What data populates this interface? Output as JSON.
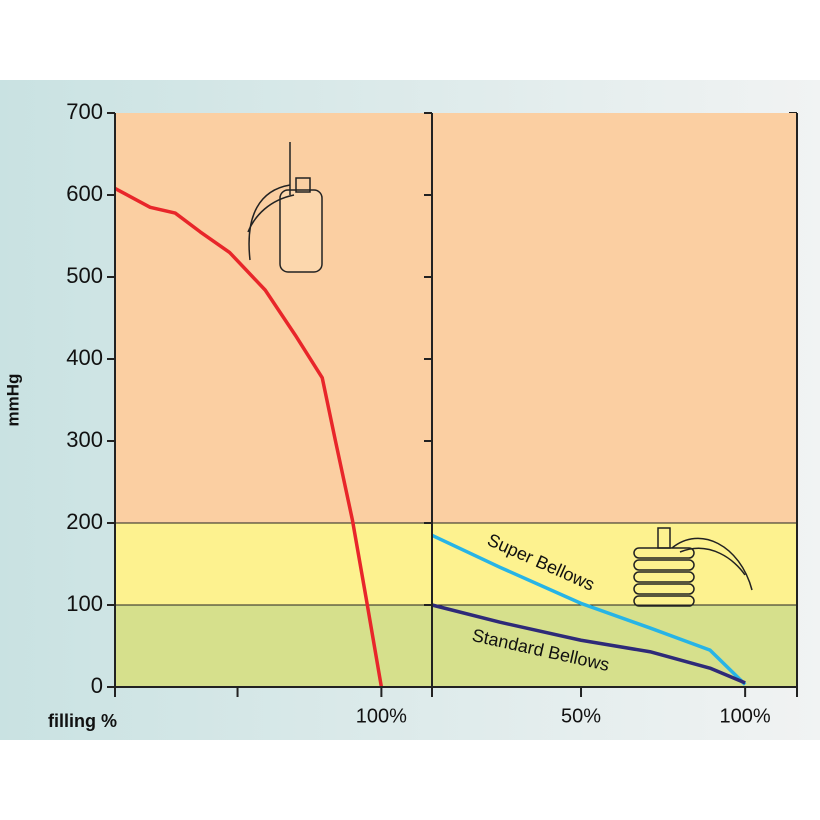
{
  "chart_data": [
    {
      "type": "line",
      "y_label": "mmHg",
      "x_label": "filling %",
      "xlim": [
        0,
        119
      ],
      "xticks": [
        {
          "value": 0,
          "label": null
        },
        {
          "value": 46,
          "label": null
        },
        {
          "value": 100,
          "label": "100%"
        }
      ],
      "ylim": [
        0,
        700
      ],
      "yticks": [
        0,
        100,
        200,
        300,
        400,
        500,
        600,
        700
      ],
      "bands": [
        {
          "from": 0,
          "to": 100,
          "color": "#d6e08c"
        },
        {
          "from": 100,
          "to": 200,
          "color": "#fdf28f"
        },
        {
          "from": 200,
          "to": 700,
          "color": "#fbcfa2"
        }
      ],
      "series": [
        {
          "color": "#e8262a",
          "x": [
            0,
            13.2,
            22.6,
            32,
            43,
            56.4,
            67.7,
            77.8,
            82.7,
            89.1,
            94.4,
            100
          ],
          "values": [
            608,
            585,
            578,
            555,
            530,
            484,
            429,
            377,
            301,
            204,
            106,
            0
          ]
        }
      ]
    },
    {
      "type": "line",
      "xlim": [
        4.6,
        115.8
      ],
      "xticks": [
        {
          "value": 50,
          "label": "50%"
        },
        {
          "value": 100,
          "label": "100%"
        }
      ],
      "ylim": [
        0,
        700
      ],
      "bands": [
        {
          "from": 0,
          "to": 100,
          "color": "#d6e08c"
        },
        {
          "from": 100,
          "to": 200,
          "color": "#fdf28f"
        },
        {
          "from": 200,
          "to": 700,
          "color": "#fbcfa2"
        }
      ],
      "series": [
        {
          "name": "Super Bellows",
          "color": "#27b4e6",
          "x": [
            4.6,
            25.3,
            50,
            71,
            89.3,
            100
          ],
          "values": [
            185,
            146,
            102,
            72,
            45,
            3
          ]
        },
        {
          "name": "Standard Bellows",
          "color": "#2e2a78",
          "x": [
            4.6,
            25.3,
            50,
            71,
            89.3,
            100
          ],
          "values": [
            100,
            79,
            57,
            43,
            23,
            5
          ]
        }
      ]
    }
  ]
}
